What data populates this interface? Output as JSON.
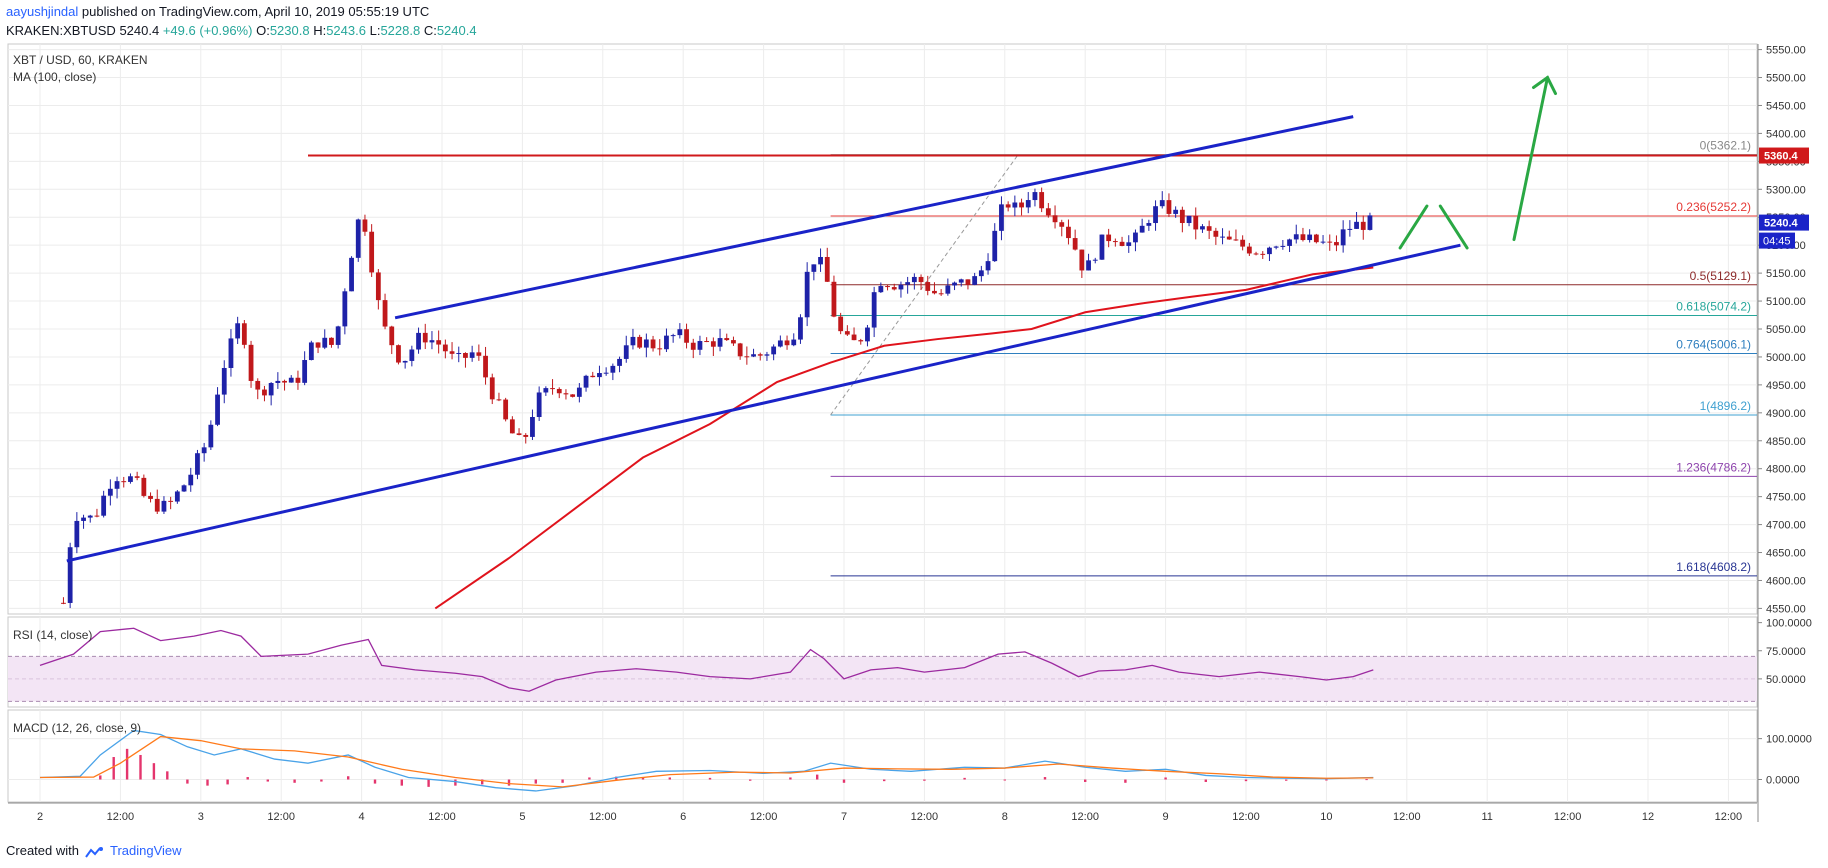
{
  "header": {
    "user": "aayushjindal",
    "published": "published on TradingView.com, April 10, 2019 05:55:19 UTC",
    "symbol": "KRAKEN:XBTUSD",
    "price": "5240.4",
    "change": "+49.6 (+0.96%)",
    "o_label": "O:",
    "o": "5230.8",
    "h_label": "H:",
    "h": "5243.6",
    "l_label": "L:",
    "l": "5228.8",
    "c_label": "C:",
    "c": "5240.4"
  },
  "legend": {
    "title": "XBT / USD, 60, KRAKEN",
    "ma": "MA (100, close)"
  },
  "rsi_label": "RSI (14, close)",
  "macd_label": "MACD (12, 26, close, 9)",
  "footer": {
    "created": "Created with",
    "brand": "TradingView"
  },
  "colors": {
    "up": "#1e22a8",
    "down": "#c0181b",
    "ma": "#e0131c",
    "channel": "#1a23c8",
    "hline": "#d0191b",
    "arrow": "#2aa844",
    "rsi": "#9c2aa0",
    "macd": "#4aa3e8",
    "signal": "#ff7a1a",
    "hist": "#e4356d"
  },
  "chart_data": [
    {
      "type": "candlestick",
      "title": "XBT / USD, 60, KRAKEN",
      "x_tick_labels": [
        "2",
        "12:00",
        "3",
        "12:00",
        "4",
        "12:00",
        "5",
        "12:00",
        "6",
        "12:00",
        "7",
        "12:00",
        "8",
        "12:00",
        "9",
        "12:00",
        "10",
        "12:00",
        "11",
        "12:00",
        "12",
        "12:00"
      ],
      "x_ticks_hours": [
        0,
        12,
        24,
        36,
        48,
        60,
        72,
        84,
        96,
        108,
        120,
        132,
        144,
        156,
        168,
        180,
        192,
        204,
        216,
        228,
        240,
        252
      ],
      "y_ticks": [
        4550,
        4600,
        4650,
        4700,
        4750,
        4800,
        4850,
        4900,
        4950,
        5000,
        5050,
        5100,
        5150,
        5200,
        5250,
        5300,
        5350,
        5400,
        5450,
        5500,
        5550
      ],
      "ylim": [
        4540,
        5560
      ],
      "last_price": "5240.4",
      "last_price_value": 5240.4,
      "countdown": "04:45",
      "hline_label": "5360.4",
      "hline_value": 5360.4,
      "fib_levels": [
        {
          "ratio": "0",
          "value": 5362.1,
          "label": "0(5362.1)",
          "color": "#888888"
        },
        {
          "ratio": "0.236",
          "value": 5252.2,
          "label": "0.236(5252.2)",
          "color": "#e53935"
        },
        {
          "ratio": "0.5",
          "value": 5129.1,
          "label": "0.5(5129.1)",
          "color": "#8d2a2a"
        },
        {
          "ratio": "0.618",
          "value": 5074.2,
          "label": "0.618(5074.2)",
          "color": "#26a69a"
        },
        {
          "ratio": "0.764",
          "value": 5006.1,
          "label": "0.764(5006.1)",
          "color": "#2f7fbf"
        },
        {
          "ratio": "1",
          "value": 4896.2,
          "label": "1(4896.2)",
          "color": "#3fa0d0"
        },
        {
          "ratio": "1.236",
          "value": 4786.2,
          "label": "1.236(4786.2)",
          "color": "#8e44ad"
        },
        {
          "ratio": "1.618",
          "value": 4608.2,
          "label": "1.618(4608.2)",
          "color": "#283593"
        }
      ],
      "fib_start_hour": 118,
      "close_points": [
        [
          3.5,
          4560
        ],
        [
          5,
          4720
        ],
        [
          8,
          4710
        ],
        [
          11,
          4790
        ],
        [
          14,
          4780
        ],
        [
          16,
          4740
        ],
        [
          19,
          4730
        ],
        [
          22,
          4780
        ],
        [
          25,
          4850
        ],
        [
          27,
          4970
        ],
        [
          30,
          5070
        ],
        [
          32,
          4930
        ],
        [
          35,
          4960
        ],
        [
          38,
          4950
        ],
        [
          41,
          5030
        ],
        [
          44,
          5020
        ],
        [
          46,
          5160
        ],
        [
          48,
          5270
        ],
        [
          49,
          5200
        ],
        [
          51,
          5060
        ],
        [
          54,
          4990
        ],
        [
          57,
          5040
        ],
        [
          60,
          5020
        ],
        [
          62,
          4990
        ],
        [
          65,
          5010
        ],
        [
          67,
          4950
        ],
        [
          70,
          4870
        ],
        [
          72,
          4840
        ],
        [
          74,
          4920
        ],
        [
          77,
          4950
        ],
        [
          80,
          4930
        ],
        [
          83,
          4980
        ],
        [
          86,
          4990
        ],
        [
          89,
          5030
        ],
        [
          92,
          5020
        ],
        [
          95,
          5040
        ],
        [
          98,
          5020
        ],
        [
          101,
          5030
        ],
        [
          104,
          5010
        ],
        [
          107,
          5000
        ],
        [
          110,
          5020
        ],
        [
          113,
          5050
        ],
        [
          115,
          5180
        ],
        [
          117,
          5160
        ],
        [
          119,
          5050
        ],
        [
          121,
          5020
        ],
        [
          123,
          5040
        ],
        [
          125,
          5140
        ],
        [
          128,
          5130
        ],
        [
          131,
          5140
        ],
        [
          134,
          5110
        ],
        [
          137,
          5130
        ],
        [
          140,
          5140
        ],
        [
          142,
          5200
        ],
        [
          144,
          5280
        ],
        [
          146,
          5260
        ],
        [
          148,
          5300
        ],
        [
          150,
          5270
        ],
        [
          152,
          5250
        ],
        [
          154,
          5210
        ],
        [
          156,
          5150
        ],
        [
          158,
          5200
        ],
        [
          160,
          5220
        ],
        [
          163,
          5200
        ],
        [
          166,
          5260
        ],
        [
          168,
          5270
        ],
        [
          170,
          5250
        ],
        [
          173,
          5230
        ],
        [
          176,
          5210
        ],
        [
          179,
          5200
        ],
        [
          182,
          5190
        ],
        [
          185,
          5210
        ],
        [
          188,
          5210
        ],
        [
          191,
          5205
        ],
        [
          193,
          5195
        ],
        [
          195,
          5230
        ],
        [
          197,
          5238
        ],
        [
          199,
          5240.4
        ]
      ],
      "ma_points": [
        [
          59,
          4550
        ],
        [
          70,
          4640
        ],
        [
          80,
          4730
        ],
        [
          90,
          4820
        ],
        [
          100,
          4880
        ],
        [
          110,
          4955
        ],
        [
          118,
          4990
        ],
        [
          126,
          5020
        ],
        [
          134,
          5032
        ],
        [
          142,
          5042
        ],
        [
          148,
          5050
        ],
        [
          156,
          5080
        ],
        [
          164,
          5095
        ],
        [
          172,
          5108
        ],
        [
          180,
          5120
        ],
        [
          190,
          5148
        ],
        [
          199,
          5160
        ]
      ],
      "channel_upper": [
        [
          53,
          5070
        ],
        [
          196,
          5430
        ]
      ],
      "channel_lower": [
        [
          4,
          4635
        ],
        [
          212,
          5200
        ]
      ],
      "resistance": {
        "from_hour": 40,
        "to_hour": 260,
        "value": 5360.4
      },
      "projection_arrows": [
        [
          [
            203,
            5195
          ],
          [
            207,
            5270
          ]
        ],
        [
          [
            209,
            5270
          ],
          [
            213,
            5195
          ]
        ],
        [
          [
            220,
            5210
          ],
          [
            225,
            5500
          ]
        ]
      ]
    },
    {
      "type": "line",
      "title": "RSI (14, close)",
      "y_ticks": [
        "100.0000",
        "75.0000",
        "50.0000"
      ],
      "y_tick_values": [
        100,
        75,
        50
      ],
      "ylim": [
        25,
        105
      ],
      "band": [
        30,
        70
      ],
      "series": [
        {
          "values": [
            [
              0,
              62
            ],
            [
              5,
              72
            ],
            [
              9,
              92
            ],
            [
              14,
              95
            ],
            [
              18,
              84
            ],
            [
              23,
              88
            ],
            [
              27,
              93
            ],
            [
              30,
              88
            ],
            [
              33,
              70
            ],
            [
              40,
              72
            ],
            [
              45,
              80
            ],
            [
              49,
              85
            ],
            [
              51,
              62
            ],
            [
              56,
              58
            ],
            [
              62,
              55
            ],
            [
              66,
              52
            ],
            [
              70,
              42
            ],
            [
              73,
              39
            ],
            [
              77,
              49
            ],
            [
              83,
              56
            ],
            [
              89,
              59
            ],
            [
              95,
              56
            ],
            [
              100,
              52
            ],
            [
              106,
              50
            ],
            [
              112,
              56
            ],
            [
              115,
              76
            ],
            [
              117,
              68
            ],
            [
              120,
              50
            ],
            [
              124,
              58
            ],
            [
              128,
              60
            ],
            [
              132,
              56
            ],
            [
              138,
              60
            ],
            [
              143,
              72
            ],
            [
              147,
              74
            ],
            [
              151,
              64
            ],
            [
              155,
              52
            ],
            [
              158,
              57
            ],
            [
              162,
              58
            ],
            [
              166,
              62
            ],
            [
              170,
              56
            ],
            [
              176,
              52
            ],
            [
              182,
              56
            ],
            [
              188,
              52
            ],
            [
              192,
              49
            ],
            [
              196,
              52
            ],
            [
              199,
              58
            ]
          ]
        }
      ]
    },
    {
      "type": "line",
      "title": "MACD (12, 26, close, 9)",
      "y_ticks": [
        "100.0000",
        "0.0000"
      ],
      "y_tick_values": [
        100,
        0
      ],
      "ylim": [
        -55,
        170
      ],
      "series": [
        {
          "values": [
            [
              0,
              5
            ],
            [
              6,
              8
            ],
            [
              9,
              60
            ],
            [
              14,
              120
            ],
            [
              18,
              110
            ],
            [
              22,
              80
            ],
            [
              26,
              60
            ],
            [
              30,
              75
            ],
            [
              35,
              50
            ],
            [
              40,
              40
            ],
            [
              46,
              60
            ],
            [
              50,
              30
            ],
            [
              55,
              5
            ],
            [
              62,
              -5
            ],
            [
              68,
              -20
            ],
            [
              74,
              -28
            ],
            [
              80,
              -15
            ],
            [
              86,
              5
            ],
            [
              92,
              20
            ],
            [
              100,
              22
            ],
            [
              108,
              15
            ],
            [
              114,
              20
            ],
            [
              118,
              40
            ],
            [
              124,
              25
            ],
            [
              130,
              20
            ],
            [
              138,
              30
            ],
            [
              144,
              28
            ],
            [
              150,
              45
            ],
            [
              156,
              30
            ],
            [
              162,
              20
            ],
            [
              168,
              25
            ],
            [
              174,
              10
            ],
            [
              180,
              5
            ],
            [
              186,
              3
            ],
            [
              192,
              2
            ],
            [
              199,
              5
            ]
          ]
        },
        {
          "values": [
            [
              0,
              5
            ],
            [
              8,
              6
            ],
            [
              12,
              40
            ],
            [
              18,
              105
            ],
            [
              24,
              95
            ],
            [
              30,
              75
            ],
            [
              38,
              70
            ],
            [
              46,
              55
            ],
            [
              54,
              25
            ],
            [
              62,
              5
            ],
            [
              70,
              -10
            ],
            [
              78,
              -18
            ],
            [
              86,
              -2
            ],
            [
              94,
              12
            ],
            [
              104,
              18
            ],
            [
              112,
              16
            ],
            [
              120,
              28
            ],
            [
              128,
              26
            ],
            [
              136,
              25
            ],
            [
              144,
              28
            ],
            [
              152,
              38
            ],
            [
              160,
              28
            ],
            [
              168,
              20
            ],
            [
              176,
              14
            ],
            [
              184,
              6
            ],
            [
              192,
              3
            ],
            [
              199,
              4
            ]
          ]
        }
      ],
      "histogram": [
        [
          9,
          10
        ],
        [
          11,
          55
        ],
        [
          13,
          75
        ],
        [
          15,
          60
        ],
        [
          17,
          40
        ],
        [
          19,
          20
        ],
        [
          22,
          -10
        ],
        [
          25,
          -15
        ],
        [
          28,
          -12
        ],
        [
          31,
          6
        ],
        [
          34,
          -5
        ],
        [
          38,
          -8
        ],
        [
          42,
          -5
        ],
        [
          46,
          8
        ],
        [
          50,
          -10
        ],
        [
          54,
          -15
        ],
        [
          58,
          -18
        ],
        [
          62,
          -15
        ],
        [
          66,
          -12
        ],
        [
          70,
          -15
        ],
        [
          74,
          -10
        ],
        [
          78,
          -8
        ],
        [
          82,
          5
        ],
        [
          86,
          7
        ],
        [
          90,
          6
        ],
        [
          94,
          5
        ],
        [
          100,
          4
        ],
        [
          106,
          -3
        ],
        [
          112,
          5
        ],
        [
          116,
          12
        ],
        [
          120,
          -8
        ],
        [
          126,
          -4
        ],
        [
          132,
          -3
        ],
        [
          138,
          4
        ],
        [
          144,
          -2
        ],
        [
          150,
          6
        ],
        [
          156,
          -6
        ],
        [
          162,
          -8
        ],
        [
          168,
          5
        ],
        [
          174,
          -6
        ],
        [
          180,
          -4
        ],
        [
          186,
          -3
        ],
        [
          192,
          -2
        ],
        [
          198,
          1
        ]
      ]
    }
  ]
}
